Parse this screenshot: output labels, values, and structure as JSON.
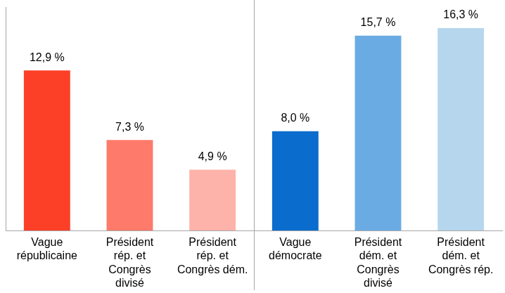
{
  "chart_data": {
    "type": "bar",
    "categories": [
      "Vague républicaine",
      "Président rép. et Congrès divisé",
      "Président rép. et Congrès dém.",
      "Vague démocrate",
      "Président dém. et Congrès divisé",
      "Président dém. et Congrès rép."
    ],
    "values": [
      12.9,
      7.3,
      4.9,
      8.0,
      15.7,
      16.3
    ],
    "value_labels": [
      "12,9 %",
      "7,3 %",
      "4,9 %",
      "8,0 %",
      "15,7 %",
      "16,3 %"
    ],
    "colors": [
      "#fc4028",
      "#fe7a6a",
      "#fdb3aa",
      "#0a6ccc",
      "#6aabe4",
      "#b6d6ee"
    ],
    "ylim": [
      0,
      18
    ],
    "grid": false,
    "data_labels": true,
    "tick_labels": "x"
  }
}
